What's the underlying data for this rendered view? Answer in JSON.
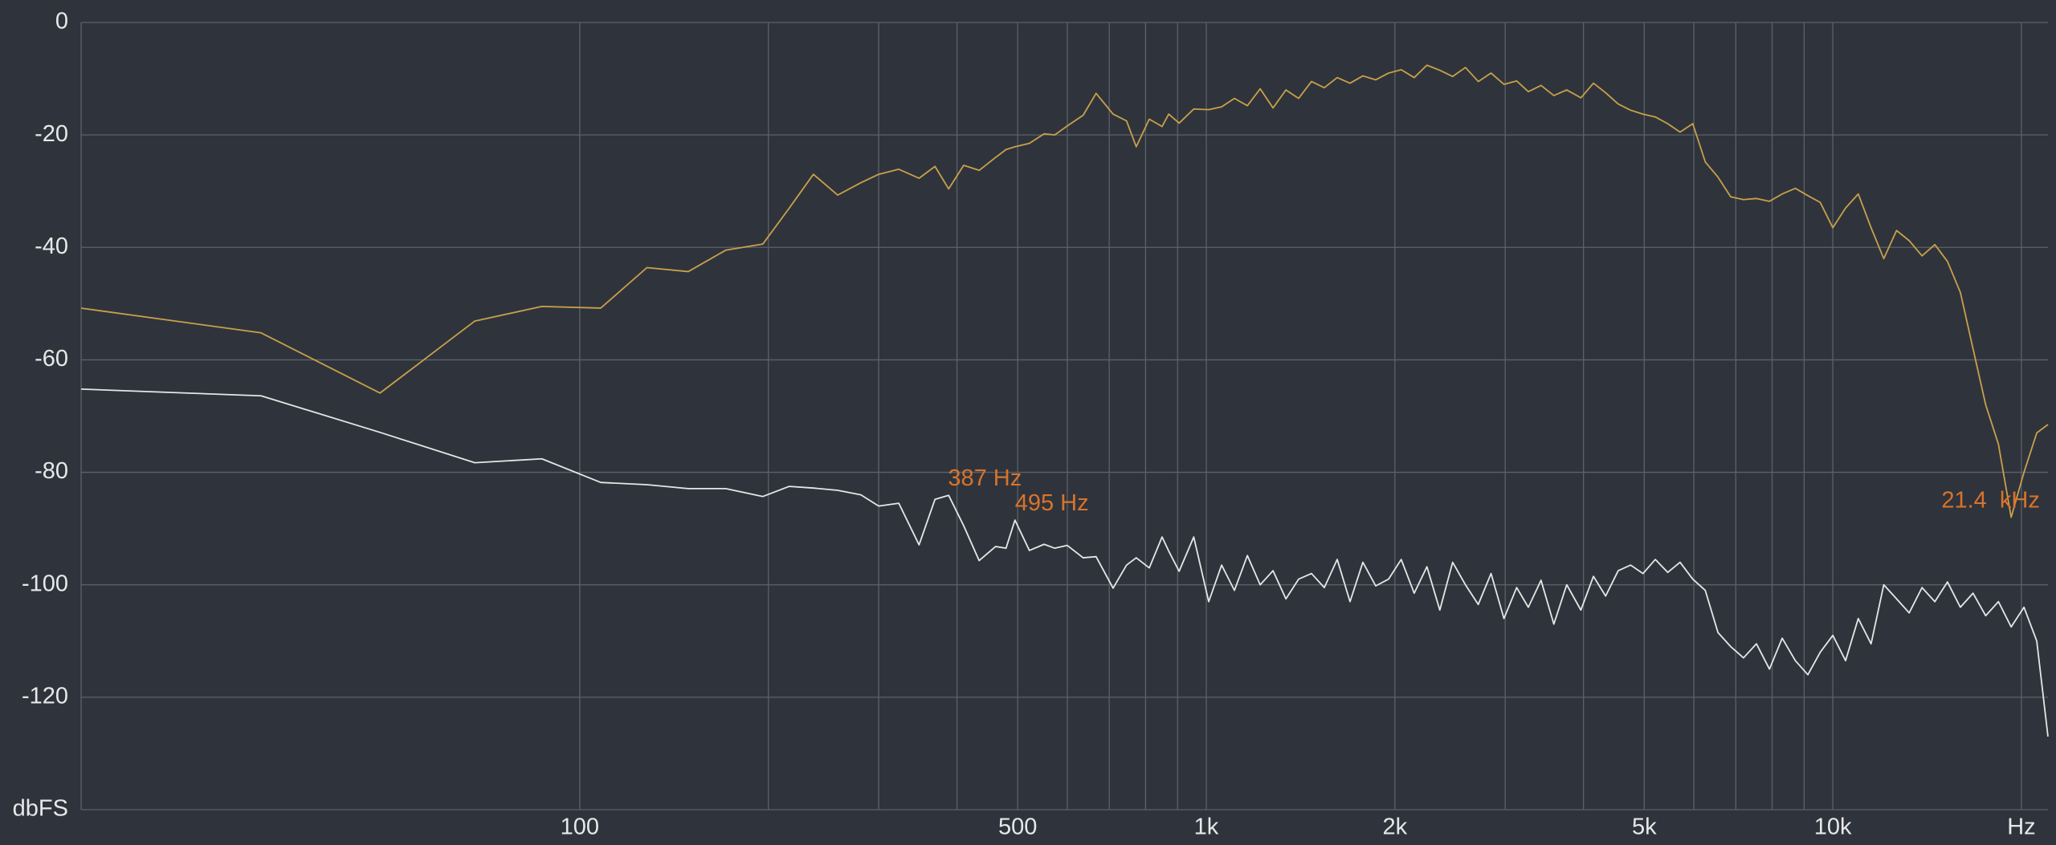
{
  "chart_data": {
    "type": "line",
    "xscale": "log",
    "grid": true,
    "xlim": [
      16,
      22050
    ],
    "ylim": [
      -140,
      0
    ],
    "xticks": [
      100,
      500,
      {
        "value": 1000,
        "label": "1k"
      },
      {
        "value": 2000,
        "label": "2k"
      },
      {
        "value": 5000,
        "label": "5k"
      },
      {
        "value": 10000,
        "label": "10k"
      },
      {
        "value": 20000,
        "label": "Hz"
      }
    ],
    "xgrid_minor": [
      200,
      300,
      400,
      600,
      700,
      800,
      900,
      3000,
      4000,
      6000,
      7000,
      8000,
      9000
    ],
    "yticks": [
      0,
      -20,
      -40,
      -60,
      -80,
      -100,
      -120,
      {
        "value": -140,
        "label": "dbFS"
      }
    ],
    "x": [
      16,
      31,
      48,
      68,
      87,
      108,
      128,
      149,
      171,
      196,
      216,
      236,
      258,
      281,
      300,
      323,
      348,
      369,
      388,
      410,
      434,
      461,
      479,
      495,
      522,
      551,
      573,
      600,
      636,
      667,
      710,
      746,
      773,
      811,
      850,
      871,
      905,
      955,
      1009,
      1058,
      1109,
      1163,
      1219,
      1278,
      1340,
      1404,
      1472,
      1543,
      1618,
      1696,
      1778,
      1864,
      1954,
      2047,
      2147,
      2250,
      2359,
      2473,
      2592,
      2717,
      2848,
      2986,
      3129,
      3266,
      3422,
      3587,
      3761,
      3962,
      4149,
      4339,
      4544,
      4756,
      4978,
      5208,
      5451,
      5704,
      5977,
      6258,
      6557,
      6871,
      7202,
      7553,
      7923,
      8303,
      8714,
      9124,
      9548,
      10000,
      10480,
      10980,
      11510,
      12060,
      12640,
      13240,
      13880,
      14550,
      15240,
      15980,
      16740,
      17540,
      18380,
      19260,
      20190,
      21160,
      22050
    ],
    "series": [
      {
        "color": "#c9a04a",
        "values": [
          -50.8,
          -55.2,
          -65.9,
          -53.1,
          -50.5,
          -50.8,
          -43.6,
          -44.3,
          -40.5,
          -39.4,
          -33,
          -27,
          -30.7,
          -28.5,
          -27,
          -26.1,
          -27.7,
          -25.6,
          -29.6,
          -25.4,
          -26.3,
          -24,
          -22.6,
          -22.1,
          -21.5,
          -19.8,
          -20,
          -18.4,
          -16.5,
          -12.6,
          -16.3,
          -17.5,
          -22.1,
          -17.2,
          -18.5,
          -16.3,
          -17.9,
          -15.4,
          -15.5,
          -15,
          -13.5,
          -14.8,
          -11.8,
          -15.2,
          -12,
          -13.5,
          -10.5,
          -11.6,
          -9.8,
          -10.8,
          -9.5,
          -10.2,
          -9,
          -8.4,
          -9.8,
          -7.6,
          -8.5,
          -9.6,
          -8,
          -10.5,
          -9,
          -11,
          -10.4,
          -12.3,
          -11.2,
          -13,
          -12,
          -13.4,
          -10.8,
          -12.5,
          -14.5,
          -15.6,
          -16.3,
          -16.8,
          -18,
          -19.5,
          -18,
          -24.8,
          -27.5,
          -31,
          -31.5,
          -31.3,
          -31.8,
          -30.5,
          -29.5,
          -30.8,
          -32,
          -36.5,
          -33,
          -30.5,
          -36.5,
          -42,
          -37,
          -38.8,
          -41.5,
          -39.5,
          -42.5,
          -48,
          -58,
          -68,
          -75,
          -88,
          -80,
          -73,
          -71.5
        ]
      },
      {
        "color": "#e6e6e6",
        "values": [
          -65.2,
          -66.4,
          -72.9,
          -78.3,
          -77.6,
          -81.8,
          -82.2,
          -82.9,
          -82.9,
          -84.3,
          -82.5,
          -82.8,
          -83.2,
          -84,
          -86,
          -85.5,
          -92.9,
          -84.8,
          -84.1,
          -89.5,
          -95.7,
          -93.2,
          -93.5,
          -88.5,
          -93.9,
          -92.8,
          -93.5,
          -93,
          -95.2,
          -95,
          -100.6,
          -96.5,
          -95.2,
          -97,
          -91.5,
          -94,
          -97.6,
          -91.5,
          -103,
          -96.5,
          -101,
          -94.8,
          -100,
          -97.5,
          -102.5,
          -99,
          -98,
          -100.5,
          -95.5,
          -103,
          -96,
          -100.2,
          -99,
          -95.5,
          -101.5,
          -96.8,
          -104.5,
          -96,
          -100,
          -103.5,
          -98,
          -106,
          -100.5,
          -104,
          -99.2,
          -107,
          -100,
          -104.5,
          -98.5,
          -102,
          -97.5,
          -96.5,
          -98,
          -95.5,
          -97.8,
          -96,
          -99,
          -101,
          -108.5,
          -111,
          -113,
          -110.5,
          -115,
          -109.5,
          -113.5,
          -116,
          -112,
          -109,
          -113.5,
          -106,
          -110.5,
          -100,
          -102.5,
          -105,
          -100.5,
          -103,
          -99.5,
          -104,
          -101.5,
          -105.5,
          -103,
          -107.5,
          -104,
          -110,
          -127
        ]
      }
    ],
    "annotations": [
      {
        "text": "387 Hz",
        "x": 387,
        "series": 1
      },
      {
        "text": "495 Hz",
        "x": 495,
        "series": 1
      },
      {
        "text": "21.4  kHz",
        "x": 21400,
        "series": 0
      }
    ],
    "annotation_color": "#d9732a"
  }
}
